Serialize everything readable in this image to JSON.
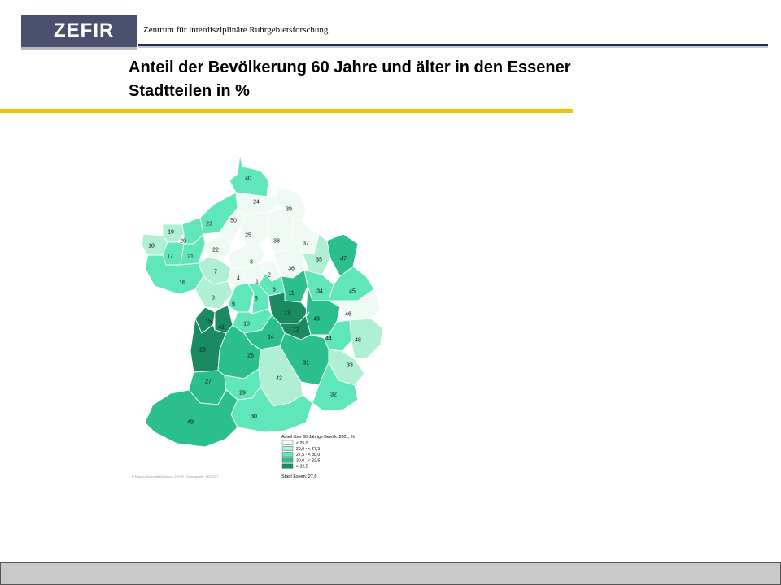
{
  "header": {
    "logo_text": "ZEFIR",
    "org_name": "Zentrum für interdisziplinäre Ruhrgebietsforschung"
  },
  "title": {
    "line1": "Anteil der  Bevölkerung 60 Jahre und älter in den Essener",
    "line2": "Stadtteilen in %"
  },
  "map": {
    "districts": [
      {
        "id": "40",
        "class": 3
      },
      {
        "id": "24",
        "class": 1
      },
      {
        "id": "39",
        "class": 1
      },
      {
        "id": "23",
        "class": 3
      },
      {
        "id": "50",
        "class": 1
      },
      {
        "id": "19",
        "class": 2
      },
      {
        "id": "20",
        "class": 3
      },
      {
        "id": "18",
        "class": 2
      },
      {
        "id": "17",
        "class": 3
      },
      {
        "id": "21",
        "class": 3
      },
      {
        "id": "22",
        "class": 1
      },
      {
        "id": "25",
        "class": 1
      },
      {
        "id": "38",
        "class": 1
      },
      {
        "id": "37",
        "class": 1
      },
      {
        "id": "35",
        "class": 2
      },
      {
        "id": "47",
        "class": 4
      },
      {
        "id": "16",
        "class": 3
      },
      {
        "id": "7",
        "class": 2
      },
      {
        "id": "3",
        "class": 1
      },
      {
        "id": "36",
        "class": 1
      },
      {
        "id": "4",
        "class": 1
      },
      {
        "id": "1",
        "class": 1
      },
      {
        "id": "2",
        "class": 1
      },
      {
        "id": "34",
        "class": 3
      },
      {
        "id": "45",
        "class": 3
      },
      {
        "id": "6",
        "class": 3
      },
      {
        "id": "11",
        "class": 4
      },
      {
        "id": "8",
        "class": 2
      },
      {
        "id": "9",
        "class": 3
      },
      {
        "id": "5",
        "class": 3
      },
      {
        "id": "46",
        "class": 1
      },
      {
        "id": "13",
        "class": 5
      },
      {
        "id": "43",
        "class": 4
      },
      {
        "id": "15",
        "class": 5
      },
      {
        "id": "41",
        "class": 5
      },
      {
        "id": "10",
        "class": 3
      },
      {
        "id": "12",
        "class": 5
      },
      {
        "id": "14",
        "class": 4
      },
      {
        "id": "44",
        "class": 3
      },
      {
        "id": "48",
        "class": 2
      },
      {
        "id": "28",
        "class": 5
      },
      {
        "id": "26",
        "class": 4
      },
      {
        "id": "31",
        "class": 4
      },
      {
        "id": "33",
        "class": 2
      },
      {
        "id": "42",
        "class": 2
      },
      {
        "id": "27",
        "class": 4
      },
      {
        "id": "29",
        "class": 3
      },
      {
        "id": "32",
        "class": 3
      },
      {
        "id": "30",
        "class": 3
      },
      {
        "id": "49",
        "class": 4
      }
    ],
    "legend": {
      "title": "Anteil über 60-Jährige Bevölk. 2001, %",
      "items": [
        {
          "label": "< 25,0",
          "color": "#eefaf3"
        },
        {
          "label": "25,0 - < 27,5",
          "color": "#aff0d5"
        },
        {
          "label": "27,5 - < 30,0",
          "color": "#5fe6ba"
        },
        {
          "label": "30,0 - < 32,5",
          "color": "#2bbf8d"
        },
        {
          "label": "> 32,5",
          "color": "#1a8a63"
        }
      ],
      "city_value": "Stadt Essen: 27,6"
    },
    "source_note": "© Ruhr-Universität Bochum - ZEFIR / Datenquelle: NOSTAT",
    "colors": {
      "border": "#ffffff",
      "outline": "#bdbdbd"
    }
  }
}
